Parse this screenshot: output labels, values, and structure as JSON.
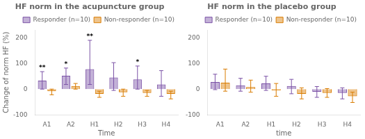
{
  "chart_data": [
    {
      "type": "bar",
      "title": "HF norm in the acupuncture group",
      "x_label": "Time",
      "y_label": "Change of norm HF (%)",
      "categories": [
        "A1",
        "A2",
        "H1",
        "H2",
        "H3",
        "H4"
      ],
      "series": [
        {
          "name": "Responder (n=10)",
          "color": "#7B52A6",
          "values": [
            33,
            52,
            78,
            45,
            38,
            18
          ],
          "upper": [
            68,
            82,
            190,
            103,
            90,
            72
          ],
          "lower": [
            0,
            18,
            18,
            -5,
            0,
            -28
          ],
          "annotations": [
            "**",
            "*",
            "**",
            null,
            "*",
            null
          ]
        },
        {
          "name": "Non-responder (n=10)",
          "color": "#D97C00",
          "values": [
            -8,
            12,
            -18,
            -12,
            -15,
            -18
          ],
          "upper": [
            0,
            22,
            -8,
            0,
            -5,
            -8
          ],
          "lower": [
            -22,
            0,
            -32,
            -28,
            -28,
            -38
          ]
        }
      ],
      "ylim": [
        -100,
        230
      ],
      "yticks": [
        -100,
        0,
        100,
        200
      ],
      "grid": false,
      "legend": "upper right"
    },
    {
      "type": "bar",
      "title": "HF norm in the placebo group",
      "x_label": "time",
      "categories": [
        "A1",
        "A2",
        "H1",
        "H2",
        "H3",
        "H4"
      ],
      "series": [
        {
          "name": "Responder (n=10)",
          "color": "#7B52A6",
          "values": [
            28,
            15,
            22,
            12,
            -10,
            -15
          ],
          "upper": [
            58,
            42,
            50,
            38,
            10,
            5
          ],
          "lower": [
            -2,
            -8,
            -5,
            -18,
            -32,
            -38
          ]
        },
        {
          "name": "Non-responder (n=10)",
          "color": "#D97C00",
          "values": [
            25,
            8,
            -5,
            -18,
            -15,
            -28
          ],
          "upper": [
            78,
            35,
            22,
            5,
            2,
            -12
          ],
          "lower": [
            -8,
            -12,
            -28,
            -38,
            -32,
            -52
          ]
        }
      ],
      "ylim": [
        -100,
        230
      ],
      "yticks": [
        -100,
        0,
        100,
        200
      ],
      "grid": false,
      "legend": "upper right"
    }
  ]
}
